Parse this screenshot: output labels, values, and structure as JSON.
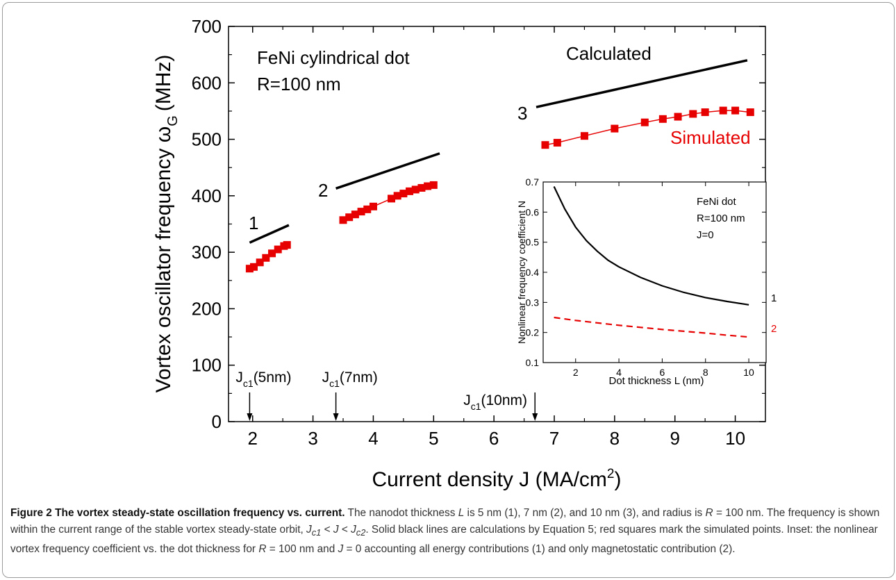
{
  "chart_data": [
    {
      "type": "line",
      "xlabel": "Current density J (MA/cm",
      "xlabel_sup": "2",
      "xlabel_end": ")",
      "ylabel": "Vortex oscillator frequency ω",
      "ylabel_sub": "G",
      "ylabel_unit": "(MHz)",
      "xlim": [
        1.6,
        10.5
      ],
      "ylim": [
        0,
        700
      ],
      "x_ticks": [
        "2",
        "3",
        "4",
        "5",
        "6",
        "7",
        "8",
        "9",
        "10"
      ],
      "y_ticks": [
        "0",
        "100",
        "200",
        "300",
        "400",
        "500",
        "600",
        "700"
      ],
      "annotations": {
        "material": "FeNi cylindrical dot",
        "radius": "R=100 nm",
        "calculated": "Calculated",
        "simulated": "Simulated",
        "curve_labels": [
          "1",
          "2",
          "3"
        ]
      },
      "critical_currents": [
        {
          "main": "J",
          "sub": "c1",
          "text": "(5nm)",
          "x": 1.95
        },
        {
          "main": "J",
          "sub": "c1",
          "text": "(7nm)",
          "x": 3.38
        },
        {
          "main": "J",
          "sub": "c1",
          "text": "(10nm)",
          "x": 6.68
        }
      ],
      "series": [
        {
          "kind": "calculated",
          "curve": "1",
          "x": [
            1.95,
            2.6
          ],
          "y": [
            317,
            348
          ]
        },
        {
          "kind": "calculated",
          "curve": "2",
          "x": [
            3.38,
            5.1
          ],
          "y": [
            413,
            475
          ]
        },
        {
          "kind": "calculated",
          "curve": "3",
          "x": [
            6.7,
            10.2
          ],
          "y": [
            557,
            640
          ]
        },
        {
          "kind": "simulated",
          "curve": "1",
          "x": [
            1.95,
            2.02,
            2.12,
            2.22,
            2.32,
            2.42,
            2.52,
            2.57
          ],
          "y": [
            271,
            274,
            282,
            290,
            298,
            305,
            311,
            313
          ]
        },
        {
          "kind": "simulated",
          "curve": "2",
          "x": [
            3.5,
            3.6,
            3.7,
            3.8,
            3.9,
            4.0,
            4.3,
            4.4,
            4.5,
            4.6,
            4.7,
            4.8,
            4.9,
            5.0
          ],
          "y": [
            357,
            362,
            367,
            372,
            376,
            381,
            395,
            400,
            404,
            408,
            411,
            414,
            417,
            419
          ]
        },
        {
          "kind": "simulated",
          "curve": "3",
          "x": [
            6.85,
            7.05,
            7.5,
            8.0,
            8.5,
            8.8,
            9.05,
            9.3,
            9.5,
            9.8,
            10.0,
            10.25
          ],
          "y": [
            490,
            494,
            506,
            519,
            530,
            536,
            540,
            545,
            548,
            551,
            551,
            548
          ]
        }
      ],
      "colors": {
        "calculated": "#000000",
        "simulated": "#e60000"
      }
    },
    {
      "type": "line",
      "inset": true,
      "xlabel": "Dot thickness L (nm)",
      "ylabel": "Nonlinear frequency coefficient N",
      "xlim": [
        0.5,
        10.8
      ],
      "ylim": [
        0.1,
        0.7
      ],
      "x_ticks": [
        "2",
        "4",
        "6",
        "8",
        "10"
      ],
      "y_ticks": [
        "0.1",
        "0.2",
        "0.3",
        "0.4",
        "0.5",
        "0.6",
        "0.7"
      ],
      "legend_text": [
        "FeNi dot",
        "R=100 nm",
        "J=0"
      ],
      "series": [
        {
          "curve": "1",
          "style": "solid",
          "color": "#000000",
          "x": [
            1.0,
            1.5,
            2.0,
            2.5,
            3.0,
            3.5,
            4.0,
            5.0,
            6.0,
            7.0,
            8.0,
            9.0,
            10.0
          ],
          "y": [
            0.685,
            0.61,
            0.55,
            0.505,
            0.47,
            0.44,
            0.418,
            0.383,
            0.355,
            0.333,
            0.316,
            0.303,
            0.292
          ]
        },
        {
          "curve": "2",
          "style": "dashed",
          "color": "#e60000",
          "x": [
            1.0,
            2.0,
            3.0,
            4.0,
            5.0,
            6.0,
            7.0,
            8.0,
            9.0,
            10.0
          ],
          "y": [
            0.25,
            0.24,
            0.232,
            0.224,
            0.217,
            0.21,
            0.204,
            0.198,
            0.191,
            0.185
          ]
        }
      ],
      "curve_labels": [
        "1",
        "2"
      ]
    }
  ],
  "caption": {
    "title": "Figure 2 The vortex steady-state oscillation frequency vs. current.",
    "text_1": " The nanodot thickness ",
    "L": "L",
    "text_2": " is 5 nm (1), 7 nm (2), and 10 nm (3), and radius is ",
    "R": "R",
    "text_3": " = 100 nm. The frequency is shown within the current range of the stable vortex steady-state orbit, ",
    "Jc1": "J",
    "Jc1_sub": "c1",
    "lt1": " < ",
    "J": "J",
    "lt2": " < ",
    "Jc2": "J",
    "Jc2_sub": "c2",
    "text_4": ". Solid black lines are calculations by Equation 5; red squares mark the simulated points. Inset: the nonlinear vortex frequency coefficient vs. the dot thickness for ",
    "R2": "R",
    "text_5": " = 100 nm and ",
    "J2": "J",
    "text_6": " = 0 accounting all energy contributions (1) and only magnetostatic contribution (2)."
  }
}
